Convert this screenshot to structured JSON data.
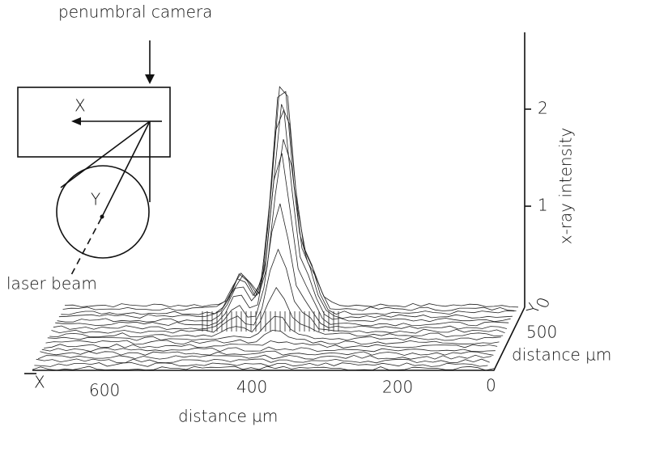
{
  "inset": {
    "title": "penumbral camera",
    "x_label": "X",
    "y_label": "Y",
    "beam_label": "laser beam"
  },
  "z_axis": {
    "label": "x-ray intensity",
    "ticks": [
      "2",
      "1"
    ]
  },
  "y_axis": {
    "name": "Y",
    "label": "distance µm",
    "ticks": [
      "0",
      "500"
    ]
  },
  "x_axis": {
    "name": "X",
    "label": "distance µm",
    "ticks": [
      "600",
      "400",
      "200",
      "0"
    ]
  }
}
